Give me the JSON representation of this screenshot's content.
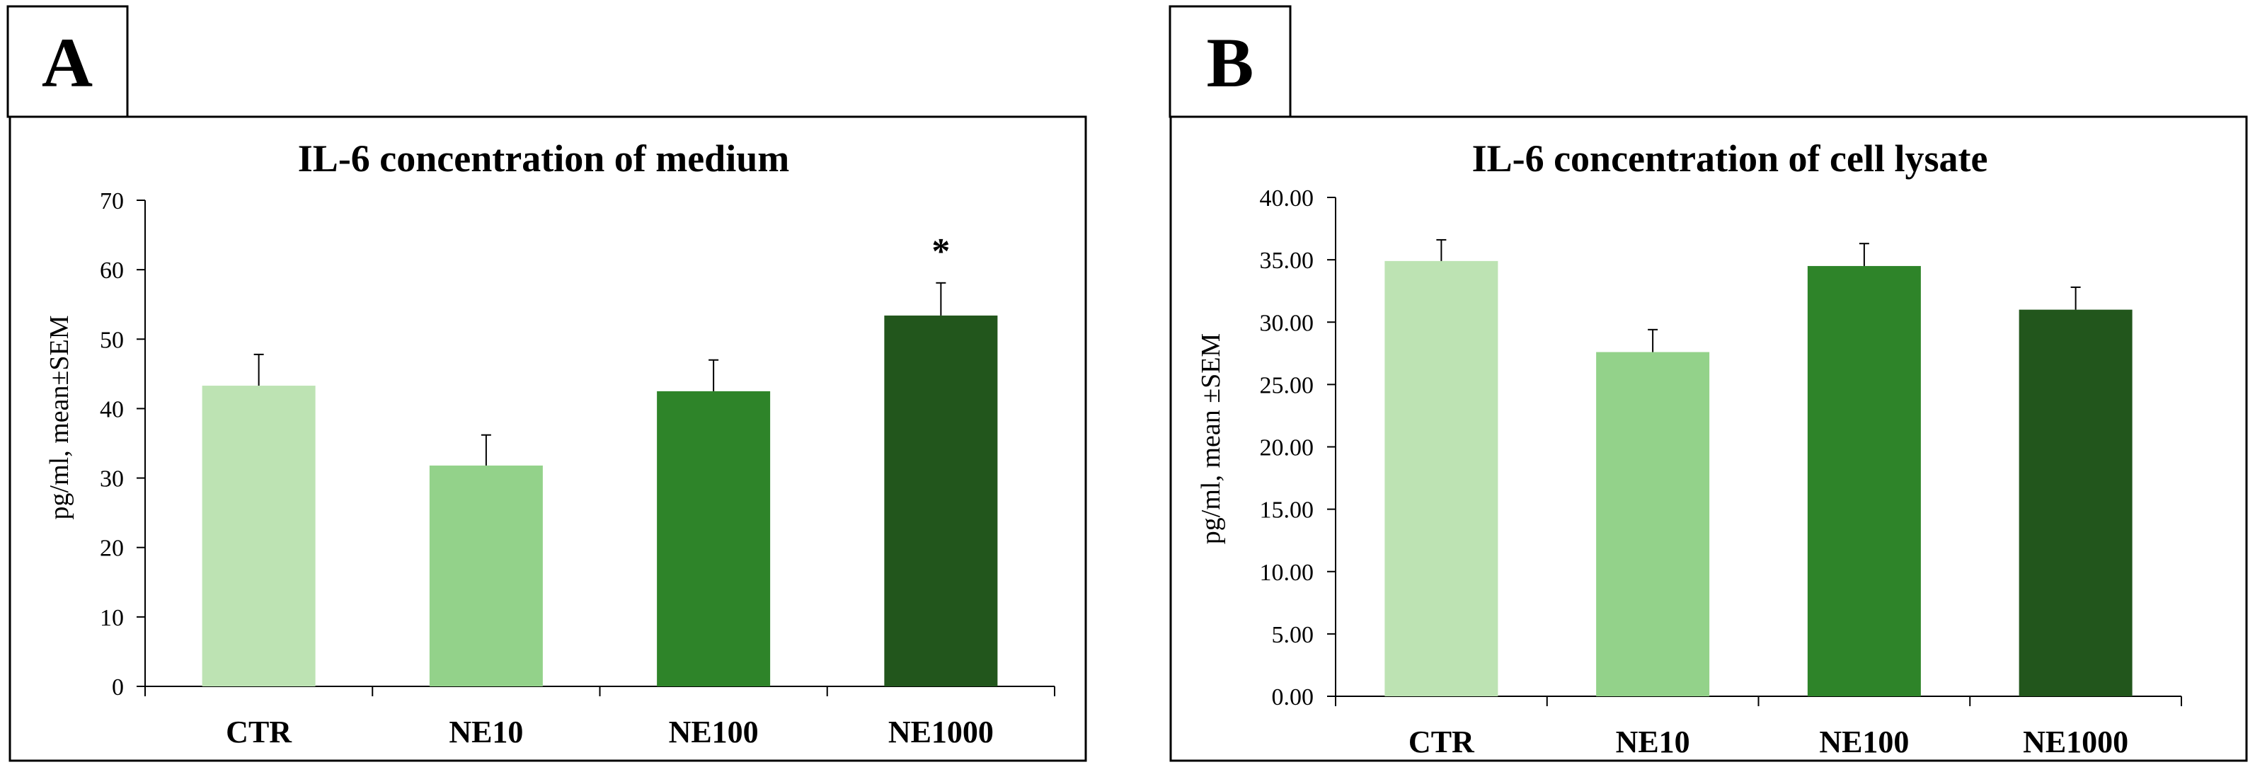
{
  "panels": [
    {
      "letter": "A"
    },
    {
      "letter": "B"
    }
  ],
  "chart_data": [
    {
      "type": "bar",
      "title": "IL-6 concentration of medium",
      "xlabel": "",
      "ylabel": "pg/ml, mean±SEM",
      "categories": [
        "CTR",
        "NE10",
        "NE100",
        "NE1000"
      ],
      "values": [
        43.3,
        31.8,
        42.5,
        53.4
      ],
      "errors": [
        4.5,
        4.4,
        4.5,
        4.7
      ],
      "colors": [
        "#bde3b3",
        "#93d28a",
        "#2e8429",
        "#22561c"
      ],
      "ylim": [
        0,
        70
      ],
      "ticks": [
        0,
        10,
        20,
        30,
        40,
        50,
        60,
        70
      ],
      "tick_labels": [
        "0",
        "10",
        "20",
        "30",
        "40",
        "50",
        "60",
        "70"
      ],
      "annotations": [
        {
          "category": "NE1000",
          "text": "*"
        }
      ],
      "grid": false
    },
    {
      "type": "bar",
      "title": "IL-6 concentration  of cell lysate",
      "xlabel": "",
      "ylabel": "pg/ml, mean ±SEM",
      "categories": [
        "CTR",
        "NE10",
        "NE100",
        "NE1000"
      ],
      "values": [
        34.9,
        27.6,
        34.5,
        31.0
      ],
      "errors": [
        1.7,
        1.8,
        1.8,
        1.8
      ],
      "colors": [
        "#bde3b3",
        "#93d28a",
        "#2e8429",
        "#22561c"
      ],
      "ylim": [
        0,
        40
      ],
      "ticks": [
        0,
        5,
        10,
        15,
        20,
        25,
        30,
        35,
        40
      ],
      "tick_labels": [
        "0.00",
        "5.00",
        "10.00",
        "15.00",
        "20.00",
        "25.00",
        "30.00",
        "35.00",
        "40.00"
      ],
      "annotations": [],
      "grid": false
    }
  ]
}
